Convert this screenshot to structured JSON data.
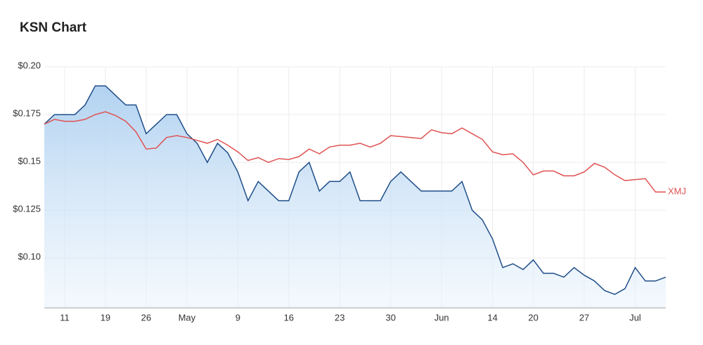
{
  "chart_data": {
    "type": "line",
    "title": "KSN Chart",
    "categories": [
      null,
      null,
      "11",
      null,
      null,
      null,
      "19",
      null,
      null,
      null,
      "26",
      null,
      null,
      null,
      "May",
      null,
      null,
      null,
      null,
      "9",
      null,
      null,
      null,
      null,
      "16",
      null,
      null,
      null,
      null,
      "23",
      null,
      null,
      null,
      null,
      "30",
      null,
      null,
      null,
      null,
      "Jun",
      null,
      null,
      null,
      null,
      "14",
      null,
      null,
      null,
      "20",
      null,
      null,
      null,
      null,
      "27",
      null,
      null,
      null,
      null,
      "Jul",
      null,
      null,
      null
    ],
    "series": [
      {
        "color": "#1f4e89",
        "area": true,
        "values": [
          0.17,
          0.175,
          0.175,
          0.175,
          0.18,
          0.19,
          0.19,
          0.185,
          0.18,
          0.18,
          0.165,
          0.17,
          0.175,
          0.175,
          0.165,
          0.16,
          0.15,
          0.16,
          0.155,
          0.145,
          0.13,
          0.14,
          0.135,
          0.13,
          0.13,
          0.145,
          0.15,
          0.135,
          0.14,
          0.14,
          0.145,
          0.13,
          0.13,
          0.13,
          0.14,
          0.145,
          0.14,
          0.135,
          0.135,
          0.135,
          0.135,
          0.14,
          0.125,
          0.12,
          0.11,
          0.095,
          0.097,
          0.094,
          0.099,
          0.092,
          0.092,
          0.09,
          0.095,
          0.091,
          0.088,
          0.083,
          0.081,
          0.084,
          0.095,
          0.088,
          0.088,
          0.09
        ]
      },
      {
        "name": "XMJ",
        "color": "#e05252",
        "area": false,
        "values": [
          0.17,
          0.1725,
          0.1715,
          0.1715,
          0.1725,
          0.175,
          0.1765,
          0.1745,
          0.1715,
          0.166,
          0.157,
          0.1575,
          0.163,
          0.164,
          0.163,
          0.1615,
          0.16,
          0.162,
          0.159,
          0.1555,
          0.151,
          0.1525,
          0.15,
          0.152,
          0.1515,
          0.153,
          0.157,
          0.1545,
          0.158,
          0.159,
          0.159,
          0.16,
          0.158,
          0.16,
          0.164,
          0.1635,
          0.163,
          0.1625,
          0.167,
          0.1655,
          0.165,
          0.168,
          0.165,
          0.162,
          0.1555,
          0.154,
          0.1545,
          0.15,
          0.1435,
          0.1455,
          0.1455,
          0.143,
          0.143,
          0.145,
          0.1495,
          0.1475,
          0.1435,
          0.1405,
          0.141,
          0.1415,
          0.1345,
          0.1345
        ]
      }
    ],
    "ylim": [
      0.074,
      0.2
    ],
    "yticks": [
      {
        "value": 0.1,
        "label": "$0.10"
      },
      {
        "value": 0.125,
        "label": "$0.125"
      },
      {
        "value": 0.15,
        "label": "$0.15"
      },
      {
        "value": 0.175,
        "label": "$0.175"
      },
      {
        "value": 0.2,
        "label": "$0.20"
      }
    ],
    "grid": true
  }
}
